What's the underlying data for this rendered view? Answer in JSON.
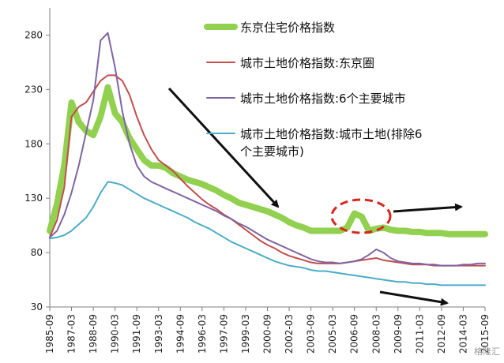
{
  "chart_data": {
    "type": "line",
    "ylim": [
      30,
      305
    ],
    "yticks": [
      30,
      80,
      130,
      180,
      230,
      280
    ],
    "x": [
      "1985-09",
      "1986-03",
      "1986-09",
      "1987-03",
      "1987-09",
      "1988-03",
      "1988-09",
      "1989-03",
      "1989-09",
      "1990-03",
      "1990-09",
      "1991-03",
      "1991-09",
      "1992-03",
      "1992-09",
      "1993-03",
      "1993-09",
      "1994-03",
      "1994-09",
      "1995-03",
      "1995-09",
      "1996-03",
      "1996-09",
      "1997-03",
      "1997-09",
      "1998-03",
      "1998-09",
      "1999-03",
      "1999-09",
      "2000-03",
      "2000-09",
      "2001-03",
      "2001-09",
      "2002-03",
      "2002-09",
      "2003-03",
      "2003-09",
      "2004-03",
      "2004-09",
      "2005-03",
      "2005-09",
      "2006-03",
      "2006-09",
      "2007-03",
      "2007-09",
      "2008-03",
      "2008-09",
      "2009-03",
      "2009-09",
      "2010-03",
      "2010-09",
      "2011-03",
      "2011-09",
      "2012-03",
      "2012-09",
      "2013-03",
      "2013-09",
      "2014-03",
      "2014-09",
      "2015-03",
      "2015-09"
    ],
    "xticks": [
      "1985-09",
      "1987-03",
      "1988-09",
      "1990-03",
      "1991-09",
      "1993-03",
      "1994-09",
      "1996-03",
      "1997-09",
      "1999-03",
      "2000-09",
      "2002-03",
      "2003-09",
      "2005-03",
      "2006-09",
      "2008-03",
      "2009-09",
      "2011-03",
      "2012-09",
      "2014-03",
      "2015-09"
    ],
    "series": [
      {
        "name": "东京住宅价格指数",
        "color": "#92d050",
        "width": 8,
        "values": [
          100,
          125,
          160,
          218,
          200,
          192,
          188,
          205,
          232,
          208,
          200,
          185,
          175,
          165,
          160,
          160,
          158,
          153,
          150,
          147,
          145,
          143,
          140,
          137,
          133,
          130,
          126,
          124,
          122,
          120,
          118,
          115,
          112,
          108,
          105,
          103,
          100,
          100,
          100,
          100,
          100,
          103,
          116,
          113,
          100,
          102,
          103,
          101,
          100,
          100,
          99,
          99,
          98,
          98,
          98,
          97,
          97,
          97,
          97,
          97,
          97
        ]
      },
      {
        "name": "城市土地价格指数:东京圈",
        "color": "#c0504d",
        "width": 2,
        "values": [
          94,
          110,
          140,
          205,
          214,
          218,
          228,
          238,
          243,
          243,
          238,
          225,
          205,
          188,
          175,
          165,
          160,
          155,
          148,
          141,
          135,
          129,
          124,
          120,
          115,
          111,
          106,
          101,
          96,
          91,
          87,
          84,
          80,
          77,
          75,
          73,
          71,
          70,
          70,
          70,
          70,
          71,
          72,
          73,
          74,
          75,
          73,
          72,
          71,
          70,
          69,
          69,
          69,
          68,
          68,
          68,
          68,
          68,
          68,
          68,
          68
        ]
      },
      {
        "name": "城市土地价格指数:6个主要城市",
        "color": "#8064a2",
        "width": 2,
        "values": [
          94,
          100,
          115,
          135,
          160,
          190,
          220,
          275,
          282,
          250,
          210,
          180,
          160,
          150,
          145,
          142,
          139,
          136,
          133,
          130,
          127,
          124,
          121,
          118,
          114,
          111,
          107,
          104,
          100,
          96,
          92,
          89,
          86,
          83,
          80,
          77,
          74,
          72,
          71,
          71,
          70,
          71,
          72,
          74,
          78,
          83,
          80,
          75,
          72,
          71,
          70,
          70,
          69,
          69,
          68,
          68,
          68,
          69,
          69,
          70,
          70
        ]
      },
      {
        "name": "城市土地价格指数:城市土地(排除6个主要城市)",
        "color": "#4bacc6",
        "width": 2,
        "values": [
          93,
          94,
          96,
          100,
          106,
          112,
          122,
          135,
          145,
          144,
          142,
          138,
          134,
          130,
          127,
          124,
          121,
          118,
          115,
          112,
          108,
          105,
          102,
          98,
          94,
          90,
          87,
          84,
          81,
          78,
          75,
          72,
          70,
          68,
          67,
          66,
          64,
          63,
          63,
          62,
          61,
          60,
          59,
          58,
          57,
          56,
          55,
          54,
          53,
          53,
          52,
          52,
          51,
          51,
          50,
          50,
          50,
          50,
          50,
          50,
          50
        ]
      }
    ]
  },
  "legend": [
    {
      "lines": [
        "东京住宅价格指数"
      ],
      "color": "#92d050"
    },
    {
      "lines": [
        "城市土地价格指数:东京圈"
      ],
      "color": "#c0504d"
    },
    {
      "lines": [
        "城市土地价格指数:6个主要城市"
      ],
      "color": "#8064a2"
    },
    {
      "lines": [
        "城市土地价格指数:城市土地(排除6",
        "个主要城市)"
      ],
      "color": "#4bacc6"
    }
  ],
  "watermark": "格隆汇",
  "colors": {
    "axis": "#7f7f7f",
    "annotation_arrow": "#111111",
    "annotation_ellipse": "#d9241f"
  }
}
